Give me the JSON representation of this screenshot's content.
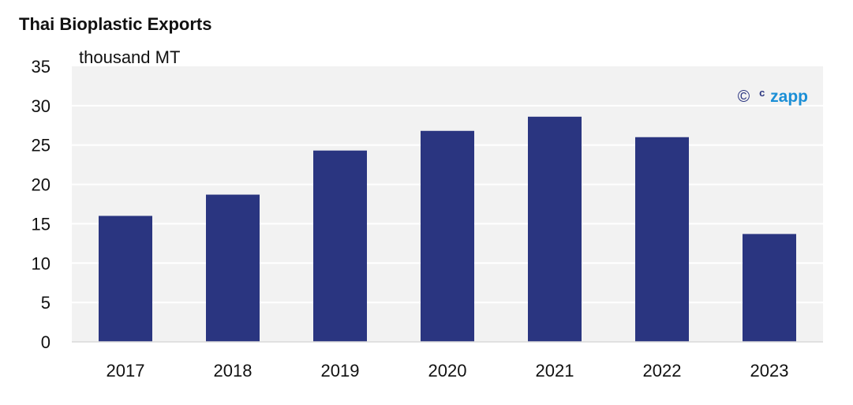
{
  "chart_data": {
    "type": "bar",
    "title": "Thai Bioplastic Exports",
    "ylabel": "thousand MT",
    "xlabel": "",
    "categories": [
      "2017",
      "2018",
      "2019",
      "2020",
      "2021",
      "2022",
      "2023"
    ],
    "values": [
      16.0,
      18.7,
      24.3,
      26.8,
      28.6,
      26.0,
      13.7
    ],
    "ylim": [
      0,
      35
    ],
    "yticks": [
      0,
      5,
      10,
      15,
      20,
      25,
      30,
      35
    ],
    "grid": true,
    "colors": {
      "bar": "#2a3580",
      "plot_bg": "#f2f2f2",
      "grid": "#ffffff",
      "watermark": "#1b8fd6"
    }
  },
  "watermark": {
    "symbol": "©",
    "superscript": "c",
    "text": "zapp"
  }
}
